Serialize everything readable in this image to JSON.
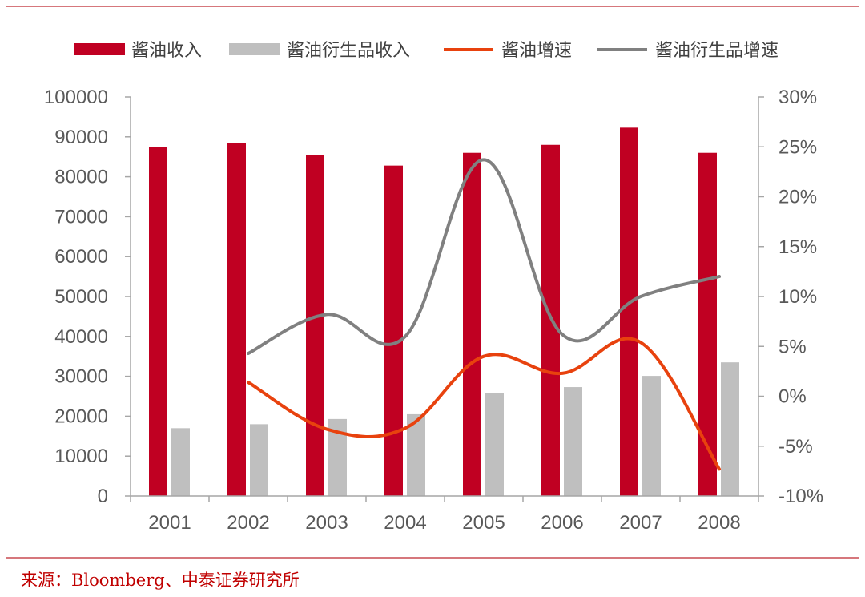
{
  "source_note": "来源：Bloomberg、中泰证券研究所",
  "colors": {
    "soy_revenue": "#c00022",
    "derivative_revenue": "#bfbfbf",
    "soy_growth": "#e8420e",
    "derivative_growth": "#808080",
    "frame_line": "#c84a50",
    "axis": "#a6a6a6"
  },
  "chart_data": {
    "type": "bar",
    "categories": [
      "2001",
      "2002",
      "2003",
      "2004",
      "2005",
      "2006",
      "2007",
      "2008"
    ],
    "title": "",
    "xlabel": "",
    "ylabel": "",
    "ylim": [
      0,
      100000
    ],
    "y2lim": [
      -0.1,
      0.3
    ],
    "y_ticks": [
      "0",
      "10000",
      "20000",
      "30000",
      "40000",
      "50000",
      "60000",
      "70000",
      "80000",
      "90000",
      "100000"
    ],
    "y2_ticks": [
      "-10%",
      "-5%",
      "0%",
      "5%",
      "10%",
      "15%",
      "20%",
      "25%",
      "30%"
    ],
    "legend_position": "top",
    "grid": false,
    "series": [
      {
        "name": "酱油收入",
        "kind": "bar",
        "axis": "left",
        "values": [
          87500,
          88500,
          85500,
          82800,
          86000,
          88000,
          92300,
          86000
        ]
      },
      {
        "name": "酱油衍生品收入",
        "kind": "bar",
        "axis": "left",
        "values": [
          17000,
          18000,
          19300,
          20500,
          25800,
          27300,
          30100,
          33500
        ]
      },
      {
        "name": "酱油增速",
        "kind": "line",
        "axis": "right",
        "values": [
          null,
          0.014,
          -0.033,
          -0.032,
          0.04,
          0.023,
          0.054,
          -0.073
        ]
      },
      {
        "name": "酱油衍生品增速",
        "kind": "line",
        "axis": "right",
        "values": [
          null,
          0.043,
          0.082,
          0.06,
          0.237,
          0.062,
          0.1,
          0.12
        ]
      }
    ]
  }
}
